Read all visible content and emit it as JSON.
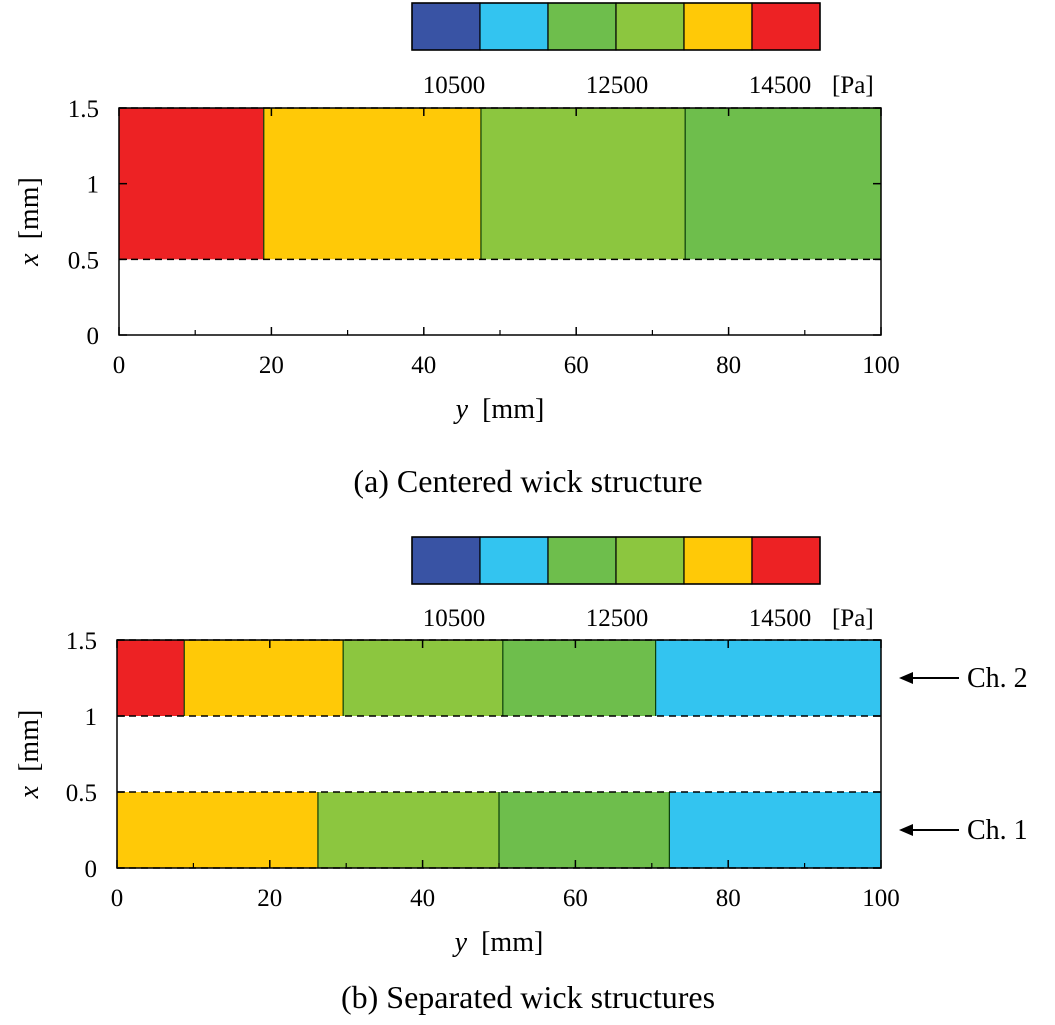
{
  "colorbar_palette": [
    "#3953a4",
    "#33c4f0",
    "#6ebe4c",
    "#8cc63f",
    "#ffc907",
    "#ed2224"
  ],
  "chart_data": [
    {
      "type": "heatmap",
      "title": "",
      "caption": "(a) Centered wick structure",
      "xlabel": {
        "var": "y",
        "unit": "[mm]"
      },
      "ylabel": {
        "var": "x",
        "unit": "[mm]"
      },
      "xlim": [
        0,
        100
      ],
      "ylim": [
        0,
        1.5
      ],
      "xticks": [
        0,
        20,
        40,
        60,
        80,
        100
      ],
      "xtick_labels": [
        "0",
        "20",
        "40",
        "60",
        "80",
        "100"
      ],
      "yticks": [
        0,
        0.5,
        1,
        1.5
      ],
      "ytick_labels": [
        "0",
        "0.5",
        "1",
        "1.5"
      ],
      "colorbar": {
        "tick_labels": [
          "10500",
          "12500",
          "14500"
        ],
        "unit": "[Pa]"
      },
      "channels": [
        {
          "name": "",
          "x_range": [
            0.5,
            1.5
          ],
          "segments": [
            {
              "y0": 0,
              "y1": 19,
              "color_index": 5
            },
            {
              "y0": 19,
              "y1": 47.5,
              "color_index": 4
            },
            {
              "y0": 47.5,
              "y1": 74.3,
              "color_index": 3
            },
            {
              "y0": 74.3,
              "y1": 100,
              "color_index": 2
            }
          ]
        }
      ]
    },
    {
      "type": "heatmap",
      "title": "",
      "caption": "(b) Separated wick structures",
      "xlabel": {
        "var": "y",
        "unit": "[mm]"
      },
      "ylabel": {
        "var": "x",
        "unit": "[mm]"
      },
      "xlim": [
        0,
        100
      ],
      "ylim": [
        0,
        1.5
      ],
      "xticks": [
        0,
        20,
        40,
        60,
        80,
        100
      ],
      "xtick_labels": [
        "0",
        "20",
        "40",
        "60",
        "80",
        "100"
      ],
      "yticks": [
        0,
        0.5,
        1,
        1.5
      ],
      "ytick_labels": [
        "0",
        "0.5",
        "1",
        "1.5"
      ],
      "colorbar": {
        "tick_labels": [
          "10500",
          "12500",
          "14500"
        ],
        "unit": "[Pa]"
      },
      "channels": [
        {
          "name": "Ch. 2",
          "x_range": [
            1.0,
            1.5
          ],
          "segments": [
            {
              "y0": 0,
              "y1": 8.8,
              "color_index": 5
            },
            {
              "y0": 8.8,
              "y1": 29.6,
              "color_index": 4
            },
            {
              "y0": 29.6,
              "y1": 50.5,
              "color_index": 3
            },
            {
              "y0": 50.5,
              "y1": 70.5,
              "color_index": 2
            },
            {
              "y0": 70.5,
              "y1": 100,
              "color_index": 1
            }
          ]
        },
        {
          "name": "Ch. 1",
          "x_range": [
            0,
            0.5
          ],
          "segments": [
            {
              "y0": 0,
              "y1": 26.3,
              "color_index": 4
            },
            {
              "y0": 26.3,
              "y1": 50,
              "color_index": 3
            },
            {
              "y0": 50,
              "y1": 72.3,
              "color_index": 2
            },
            {
              "y0": 72.3,
              "y1": 100,
              "color_index": 1
            }
          ]
        }
      ]
    }
  ]
}
